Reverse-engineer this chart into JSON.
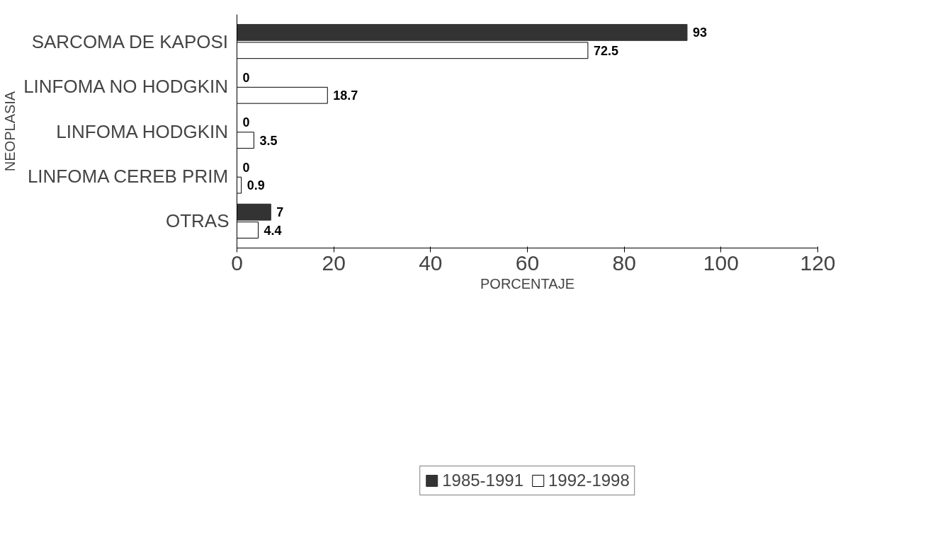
{
  "chart_data": {
    "type": "bar",
    "orientation": "horizontal",
    "ylabel": "NEOPLASIA",
    "xlabel": "PORCENTAJE",
    "categories": [
      "SARCOMA DE KAPOSI",
      "LINFOMA NO HODGKIN",
      "LINFOMA HODGKIN",
      "LINFOMA CEREB PRIM",
      "OTRAS"
    ],
    "series": [
      {
        "name": "1985-1991",
        "color": "#333333",
        "values": [
          93,
          0,
          0,
          0,
          7
        ]
      },
      {
        "name": "1992-1998",
        "color": "#ffffff",
        "values": [
          72.5,
          18.7,
          3.5,
          0.9,
          4.4
        ]
      }
    ],
    "xlim": [
      0,
      120
    ],
    "xticks": [
      0,
      20,
      40,
      60,
      80,
      100,
      120
    ],
    "data_labels": true,
    "legend": "bottom",
    "grid": false
  }
}
